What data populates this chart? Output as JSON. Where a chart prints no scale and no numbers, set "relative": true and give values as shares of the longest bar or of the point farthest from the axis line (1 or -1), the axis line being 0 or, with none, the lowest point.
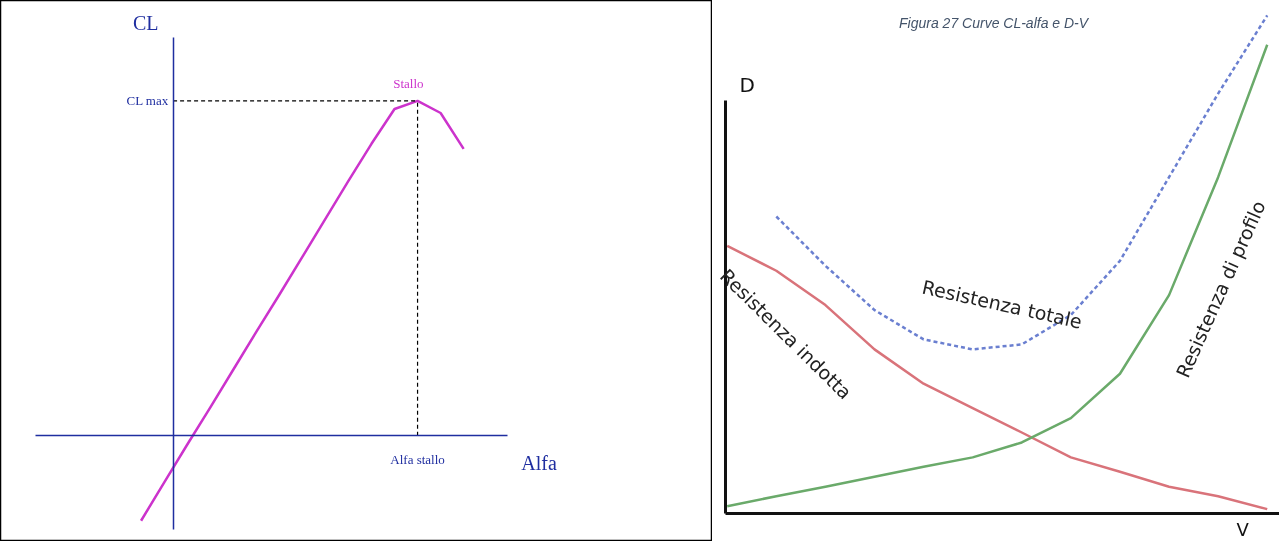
{
  "chart_data": [
    {
      "type": "line",
      "relative": true,
      "xlabel": "Alfa",
      "ylabel": "CL",
      "categories": [
        null,
        null,
        null,
        null,
        null,
        null,
        null,
        null,
        null,
        null,
        null,
        null,
        null,
        null,
        null
      ],
      "series": [
        {
          "color": "#cc33cc",
          "values": [
            -0.254,
            -0.14,
            -0.027,
            0.084,
            0.197,
            0.31,
            0.421,
            0.534,
            0.648,
            0.761,
            0.872,
            0.976,
            1,
            0.964,
            0.857
          ]
        }
      ],
      "ref_lines": [
        {
          "axis": "y",
          "value": 0,
          "color": "#1f2ea0"
        }
      ],
      "annotations": [
        {
          "text": "Stallo",
          "y": 1
        },
        "CL max",
        "Alfa stallo"
      ]
    },
    {
      "type": "line",
      "relative": true,
      "title": "Figura 27 Curve CL-alfa e D-V",
      "xlabel": "V",
      "ylabel": "D",
      "categories": [
        null,
        null,
        null,
        null,
        null,
        null,
        null,
        null,
        null,
        null,
        null,
        null
      ],
      "series": [
        {
          "name": "Resistenza indotta",
          "color": "#d9737a",
          "line_style": "solid",
          "values": [
            0.537,
            0.487,
            0.418,
            0.329,
            0.26,
            0.211,
            0.162,
            0.112,
            0.083,
            0.053,
            0.034,
            0.008
          ]
        },
        {
          "name": "Resistenza di profilo",
          "color": "#6aaa6a",
          "line_style": "solid",
          "values": [
            0.014,
            0.034,
            0.053,
            0.073,
            0.093,
            0.112,
            0.142,
            0.191,
            0.28,
            0.438,
            0.675,
            0.941
          ]
        },
        {
          "name": "Resistenza totale",
          "color": "#6a7fd0",
          "line_style": "dashed",
          "values": [
            null,
            0.596,
            0.497,
            0.408,
            0.349,
            0.329,
            0.339,
            0.398,
            0.507,
            0.675,
            0.843,
            1.0
          ]
        }
      ]
    }
  ]
}
